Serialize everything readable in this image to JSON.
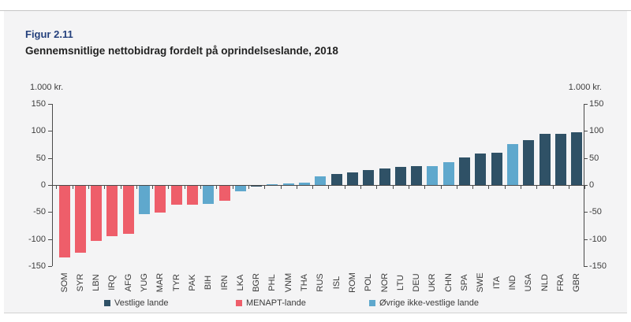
{
  "figure": {
    "label": "Figur 2.11",
    "title": "Gennemsnitlige nettobidrag fordelt på oprindelseslande, 2018"
  },
  "chart_data": {
    "type": "bar",
    "title": "Gennemsnitlige nettobidrag fordelt på oprindelseslande, 2018",
    "unit": "1.000 kr.",
    "ylim": [
      -150,
      150
    ],
    "yticks": [
      150,
      100,
      50,
      0,
      -50,
      -100,
      -150
    ],
    "grid": false,
    "legend_position": "bottom",
    "legend": [
      {
        "key": "vestlige",
        "label": "Vestlige lande",
        "color": "#2f5166"
      },
      {
        "key": "menapt",
        "label": "MENAPT-lande",
        "color": "#ee5e6a"
      },
      {
        "key": "ovrige",
        "label": "Øvrige ikke-vestlige lande",
        "color": "#5fa8cd"
      }
    ],
    "points": [
      {
        "code": "SOM",
        "value": -133,
        "group": "menapt"
      },
      {
        "code": "SYR",
        "value": -123,
        "group": "menapt"
      },
      {
        "code": "LBN",
        "value": -102,
        "group": "menapt"
      },
      {
        "code": "IRQ",
        "value": -93,
        "group": "menapt"
      },
      {
        "code": "AFG",
        "value": -89,
        "group": "menapt"
      },
      {
        "code": "YUG",
        "value": -53,
        "group": "ovrige"
      },
      {
        "code": "MAR",
        "value": -49,
        "group": "menapt"
      },
      {
        "code": "TYR",
        "value": -35,
        "group": "menapt"
      },
      {
        "code": "PAK",
        "value": -35,
        "group": "menapt"
      },
      {
        "code": "BIH",
        "value": -34,
        "group": "ovrige"
      },
      {
        "code": "IRN",
        "value": -28,
        "group": "menapt"
      },
      {
        "code": "LKA",
        "value": -10,
        "group": "ovrige"
      },
      {
        "code": "BGR",
        "value": -1,
        "group": "vestlige"
      },
      {
        "code": "PHL",
        "value": 2,
        "group": "ovrige"
      },
      {
        "code": "VNM",
        "value": 3,
        "group": "ovrige"
      },
      {
        "code": "THA",
        "value": 4,
        "group": "ovrige"
      },
      {
        "code": "RUS",
        "value": 16,
        "group": "ovrige"
      },
      {
        "code": "ISL",
        "value": 20,
        "group": "vestlige"
      },
      {
        "code": "ROM",
        "value": 23,
        "group": "vestlige"
      },
      {
        "code": "POL",
        "value": 27,
        "group": "vestlige"
      },
      {
        "code": "NOR",
        "value": 30,
        "group": "vestlige"
      },
      {
        "code": "LTU",
        "value": 33,
        "group": "vestlige"
      },
      {
        "code": "DEU",
        "value": 35,
        "group": "vestlige"
      },
      {
        "code": "UKR",
        "value": 35,
        "group": "ovrige"
      },
      {
        "code": "CHN",
        "value": 42,
        "group": "ovrige"
      },
      {
        "code": "SPA",
        "value": 51,
        "group": "vestlige"
      },
      {
        "code": "SWE",
        "value": 58,
        "group": "vestlige"
      },
      {
        "code": "ITA",
        "value": 59,
        "group": "vestlige"
      },
      {
        "code": "IND",
        "value": 76,
        "group": "ovrige"
      },
      {
        "code": "USA",
        "value": 83,
        "group": "vestlige"
      },
      {
        "code": "NLD",
        "value": 94,
        "group": "vestlige"
      },
      {
        "code": "FRA",
        "value": 94,
        "group": "vestlige"
      },
      {
        "code": "GBR",
        "value": 97,
        "group": "vestlige"
      }
    ]
  },
  "colors": {
    "panel_bg": "#f4f4f5",
    "title_blue": "#25417d",
    "axis": "#4a4a4a",
    "text": "#3a3a3a"
  }
}
